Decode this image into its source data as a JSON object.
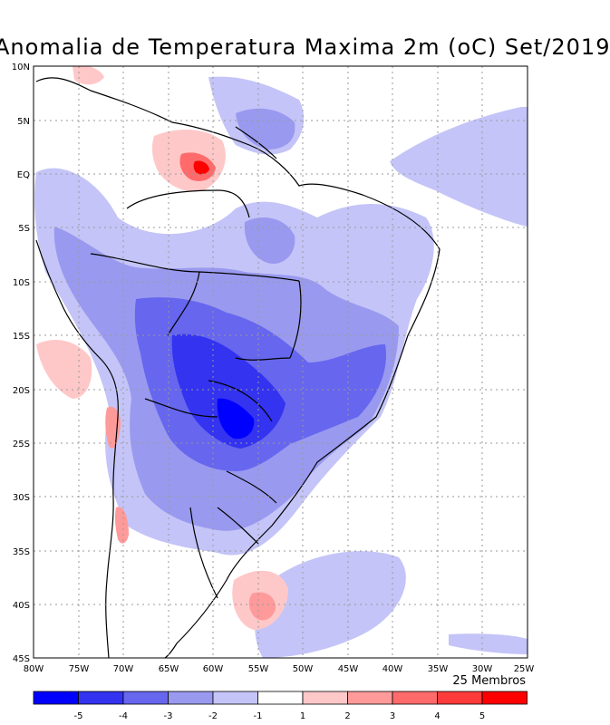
{
  "title": "Anomalia de Temperatura Maxima 2m (oC) Set/2019",
  "footer_note": "25 Membros",
  "lat_labels": [
    "10N",
    "5N",
    "EQ",
    "5S",
    "10S",
    "15S",
    "20S",
    "25S",
    "30S",
    "35S",
    "40S",
    "45S"
  ],
  "lon_labels": [
    "80W",
    "75W",
    "70W",
    "65W",
    "60W",
    "55W",
    "50W",
    "45W",
    "40W",
    "35W",
    "30W",
    "25W"
  ],
  "colorbar": {
    "colors": [
      "#0000ff",
      "#3333f0",
      "#6666ee",
      "#9999f0",
      "#c4c4f8",
      "#ffffff",
      "#ffc8c8",
      "#ff9a9a",
      "#ff6a6a",
      "#ff3a3a",
      "#ff0000"
    ],
    "tick_labels": [
      "-5",
      "-4",
      "-3",
      "-2",
      "-1",
      "1",
      "2",
      "3",
      "4",
      "5"
    ]
  }
}
